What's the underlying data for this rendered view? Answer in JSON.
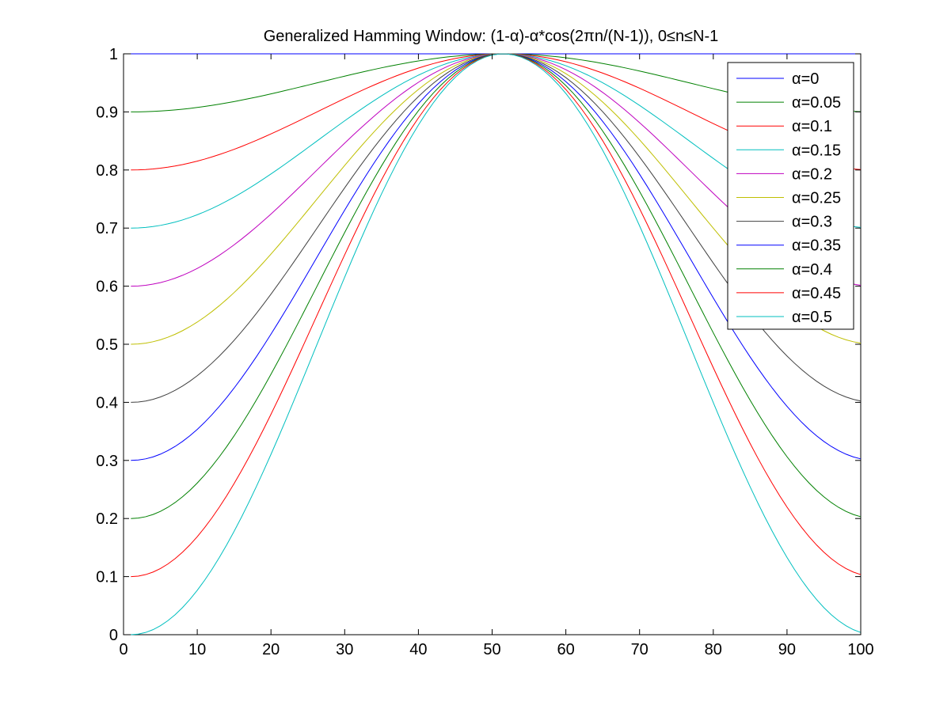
{
  "chart_data": {
    "type": "line",
    "title": "Generalized Hamming Window: (1-α)-α*cos(2πn/(N-1)), 0≤n≤N-1",
    "xlabel": "",
    "ylabel": "",
    "xlim": [
      0,
      100
    ],
    "ylim": [
      0,
      1
    ],
    "x_ticks": [
      0,
      10,
      20,
      30,
      40,
      50,
      60,
      70,
      80,
      90,
      100
    ],
    "y_ticks": [
      0,
      0.1,
      0.2,
      0.3,
      0.4,
      0.5,
      0.6,
      0.7,
      0.8,
      0.9,
      1
    ],
    "x_tick_labels": [
      "0",
      "10",
      "20",
      "30",
      "40",
      "50",
      "60",
      "70",
      "80",
      "90",
      "100"
    ],
    "y_tick_labels": [
      "0",
      "0.1",
      "0.2",
      "0.3",
      "0.4",
      "0.5",
      "0.6",
      "0.7",
      "0.8",
      "0.9",
      "1"
    ],
    "grid": false,
    "legend_position": "top-right",
    "formula": "(1-alpha) - alpha*cos(2*pi*n/(N-1))",
    "window_length_N": 102,
    "x_start": 1,
    "series": [
      {
        "name": "α=0",
        "alpha": 0,
        "color": "#0000ff"
      },
      {
        "name": "α=0.05",
        "alpha": 0.05,
        "color": "#008000"
      },
      {
        "name": "α=0.1",
        "alpha": 0.1,
        "color": "#ff0000"
      },
      {
        "name": "α=0.15",
        "alpha": 0.15,
        "color": "#00bfbf"
      },
      {
        "name": "α=0.2",
        "alpha": 0.2,
        "color": "#bf00bf"
      },
      {
        "name": "α=0.25",
        "alpha": 0.25,
        "color": "#bfbf00"
      },
      {
        "name": "α=0.3",
        "alpha": 0.3,
        "color": "#404040"
      },
      {
        "name": "α=0.35",
        "alpha": 0.35,
        "color": "#0000ff"
      },
      {
        "name": "α=0.4",
        "alpha": 0.4,
        "color": "#008000"
      },
      {
        "name": "α=0.45",
        "alpha": 0.45,
        "color": "#ff0000"
      },
      {
        "name": "α=0.5",
        "alpha": 0.5,
        "color": "#00bfbf"
      }
    ]
  }
}
